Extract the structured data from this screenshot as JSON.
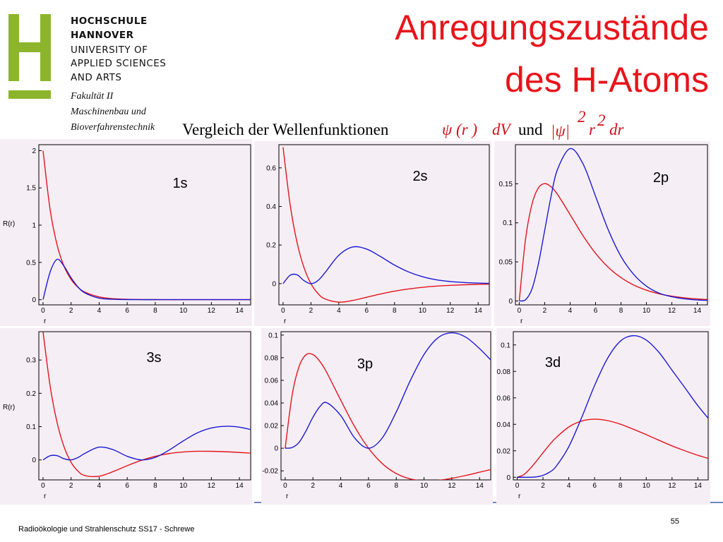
{
  "header": {
    "institution": [
      "HOCHSCHULE",
      "HANNOVER",
      "UNIVERSITY OF",
      "APPLIED SCIENCES",
      "AND ARTS"
    ],
    "faculty": [
      "Fakultät II",
      "Maschinenbau und",
      "Bioverfahrenstechnik"
    ],
    "title": [
      "Anregungszustände",
      "des H-Atoms"
    ],
    "subtitle": {
      "text": "Vergleich der Wellenfunktionen",
      "psi": "ψ (r )",
      "dv": "dV",
      "und": "und",
      "abs": "|ψ|",
      "exp1": "2",
      "r": "r",
      "exp2": "2",
      "dr": "dr"
    }
  },
  "footer": {
    "text": "Radioökologie und Strahlenschutz SS17 - Schrewe",
    "page": "55"
  },
  "chart_data": [
    {
      "type": "line",
      "title": "1s",
      "xlabel": "r",
      "ylabel": "R(r)",
      "x": [
        0,
        0.5,
        1,
        1.5,
        2,
        2.5,
        3,
        4,
        5,
        6,
        7,
        8,
        9,
        10,
        11,
        12,
        13,
        14,
        15
      ],
      "series": [
        {
          "color": "#e2141c",
          "values": [
            2,
            1.213,
            0.736,
            0.446,
            0.271,
            0.164,
            0.1,
            0.037,
            0.013,
            0.005,
            0.002,
            0.001,
            0,
            0,
            0,
            0,
            0,
            0,
            0
          ]
        },
        {
          "color": "#1a1ad2",
          "values": [
            0,
            0.368,
            0.541,
            0.448,
            0.293,
            0.168,
            0.089,
            0.021,
            0.005,
            0.001,
            0,
            0,
            0,
            0,
            0,
            0,
            0,
            0,
            0
          ]
        }
      ],
      "xlim": [
        -0.3,
        14.8
      ],
      "ylim": [
        -0.07,
        2.08
      ],
      "xticks": [
        0,
        2,
        4,
        6,
        8,
        10,
        12,
        14
      ],
      "yticks": [
        0,
        0.5,
        1,
        1.5,
        2
      ]
    },
    {
      "type": "line",
      "title": "2s",
      "xlabel": "r",
      "x": [
        0,
        0.5,
        1,
        1.5,
        2,
        2.5,
        3,
        4,
        5,
        6,
        7,
        8,
        9,
        10,
        11,
        12,
        13,
        14,
        15
      ],
      "series": [
        {
          "color": "#e2141c",
          "values": [
            0.707,
            0.413,
            0.214,
            0.0835,
            0,
            -0.0507,
            -0.0789,
            -0.0957,
            -0.0871,
            -0.0704,
            -0.0534,
            -0.0388,
            -0.0275,
            -0.0191,
            -0.013,
            -0.0088,
            -0.0058,
            -0.0039,
            -0.0025
          ]
        },
        {
          "color": "#1a1ad2",
          "values": [
            0,
            0.043,
            0.046,
            0.0157,
            0,
            0.016,
            0.056,
            0.147,
            0.19,
            0.179,
            0.14,
            0.096,
            0.061,
            0.036,
            0.02,
            0.011,
            0.006,
            0.003,
            0.001
          ]
        }
      ],
      "xlim": [
        -0.3,
        14.8
      ],
      "ylim": [
        -0.11,
        0.72
      ],
      "xticks": [
        0,
        2,
        4,
        6,
        8,
        10,
        12,
        14
      ],
      "yticks": [
        0,
        0.2,
        0.4,
        0.6
      ]
    },
    {
      "type": "line",
      "title": "2p",
      "xlabel": "r",
      "x": [
        0,
        0.5,
        1,
        1.5,
        2,
        2.5,
        3,
        4,
        5,
        6,
        7,
        8,
        9,
        10,
        11,
        12,
        13,
        14,
        15
      ],
      "series": [
        {
          "color": "#e2141c",
          "values": [
            0,
            0.0795,
            0.1238,
            0.1446,
            0.1502,
            0.1462,
            0.1366,
            0.1105,
            0.0838,
            0.061,
            0.0431,
            0.0299,
            0.0204,
            0.0138,
            0.0092,
            0.0061,
            0.004,
            0.0026,
            0.0017
          ]
        },
        {
          "color": "#1a1ad2",
          "values": [
            0,
            0.0016,
            0.0153,
            0.047,
            0.0902,
            0.1336,
            0.168,
            0.195,
            0.176,
            0.134,
            0.091,
            0.057,
            0.034,
            0.019,
            0.01,
            0.0054,
            0.0027,
            0.0013,
            0.0007
          ]
        }
      ],
      "xlim": [
        -0.3,
        14.8
      ],
      "ylim": [
        -0.005,
        0.2
      ],
      "xticks": [
        0,
        2,
        4,
        6,
        8,
        10,
        12,
        14
      ],
      "yticks": [
        0,
        0.05,
        0.1,
        0.15
      ]
    },
    {
      "type": "line",
      "title": "3s",
      "xlabel": "r",
      "ylabel": "R(r)",
      "x": [
        0,
        0.5,
        1,
        1.5,
        2,
        2.5,
        3,
        4,
        5,
        6,
        7,
        8,
        9,
        10,
        11,
        12,
        13,
        14,
        15
      ],
      "series": [
        {
          "color": "#e2141c",
          "values": [
            0.385,
            0.2233,
            0.1124,
            0.0389,
            -0.0073,
            -0.0341,
            -0.0472,
            -0.0489,
            -0.035,
            -0.0174,
            -0.0014,
            0.0109,
            0.0192,
            0.0239,
            0.0259,
            0.0258,
            0.0245,
            0.0224,
            0.0199
          ]
        },
        {
          "color": "#1a1ad2",
          "values": [
            0,
            0.0125,
            0.0126,
            0.0034,
            0.0002,
            0.0073,
            0.0201,
            0.0383,
            0.0306,
            0.0109,
            0.0001,
            0.0076,
            0.0299,
            0.0571,
            0.0812,
            0.0959,
            0.101,
            0.0983,
            0.0891
          ]
        }
      ],
      "xlim": [
        -0.3,
        14.8
      ],
      "ylim": [
        -0.06,
        0.385
      ],
      "xticks": [
        0,
        2,
        4,
        6,
        8,
        10,
        12,
        14
      ],
      "yticks": [
        0,
        0.1,
        0.2,
        0.3
      ]
    },
    {
      "type": "line",
      "title": "3p",
      "xlabel": "r",
      "x": [
        0,
        0.5,
        1,
        1.5,
        2,
        2.5,
        3,
        4,
        5,
        6,
        7,
        8,
        9,
        10,
        11,
        12,
        13,
        14,
        15
      ],
      "series": [
        {
          "color": "#e2141c",
          "values": [
            0,
            0.0469,
            0.0722,
            0.0826,
            0.0828,
            0.0767,
            0.0668,
            0.0425,
            0.0191,
            0,
            -0.0137,
            -0.0224,
            -0.0271,
            -0.0288,
            -0.0284,
            -0.0266,
            -0.0241,
            -0.0212,
            -0.0183
          ]
        },
        {
          "color": "#1a1ad2",
          "values": [
            0,
            0.0006,
            0.0052,
            0.0153,
            0.0274,
            0.0368,
            0.0402,
            0.0289,
            0.0091,
            0,
            0.0092,
            0.0321,
            0.0595,
            0.0829,
            0.0976,
            0.102,
            0.0982,
            0.088,
            0.0754
          ]
        }
      ],
      "xlim": [
        -0.3,
        14.8
      ],
      "ylim": [
        -0.028,
        0.103
      ],
      "xticks": [
        0,
        2,
        4,
        6,
        8,
        10,
        12,
        14
      ],
      "yticks": [
        -0.02,
        0,
        0.02,
        0.04,
        0.06,
        0.08,
        0.1
      ]
    },
    {
      "type": "line",
      "title": "3d",
      "xlabel": "r",
      "x": [
        0,
        0.5,
        1,
        1.5,
        2,
        2.5,
        3,
        4,
        5,
        6,
        7,
        8,
        9,
        10,
        11,
        12,
        13,
        14,
        15
      ],
      "series": [
        {
          "color": "#e2141c",
          "values": [
            0,
            0.0019,
            0.0065,
            0.0123,
            0.0185,
            0.0245,
            0.0298,
            0.038,
            0.0425,
            0.0439,
            0.0428,
            0.0401,
            0.0363,
            0.0322,
            0.0279,
            0.0237,
            0.02,
            0.0166,
            0.0137
          ]
        },
        {
          "color": "#1a1ad2",
          "values": [
            0,
            0,
            0,
            0.0003,
            0.0014,
            0.0038,
            0.008,
            0.0231,
            0.0452,
            0.0694,
            0.0898,
            0.1029,
            0.107,
            0.1037,
            0.0942,
            0.0809,
            0.0676,
            0.0541,
            0.0423
          ]
        }
      ],
      "xlim": [
        -0.3,
        14.8
      ],
      "ylim": [
        -0.002,
        0.11
      ],
      "xticks": [
        0,
        2,
        4,
        6,
        8,
        10,
        12,
        14
      ],
      "yticks": [
        0,
        0.02,
        0.04,
        0.06,
        0.08,
        0.1
      ]
    }
  ]
}
